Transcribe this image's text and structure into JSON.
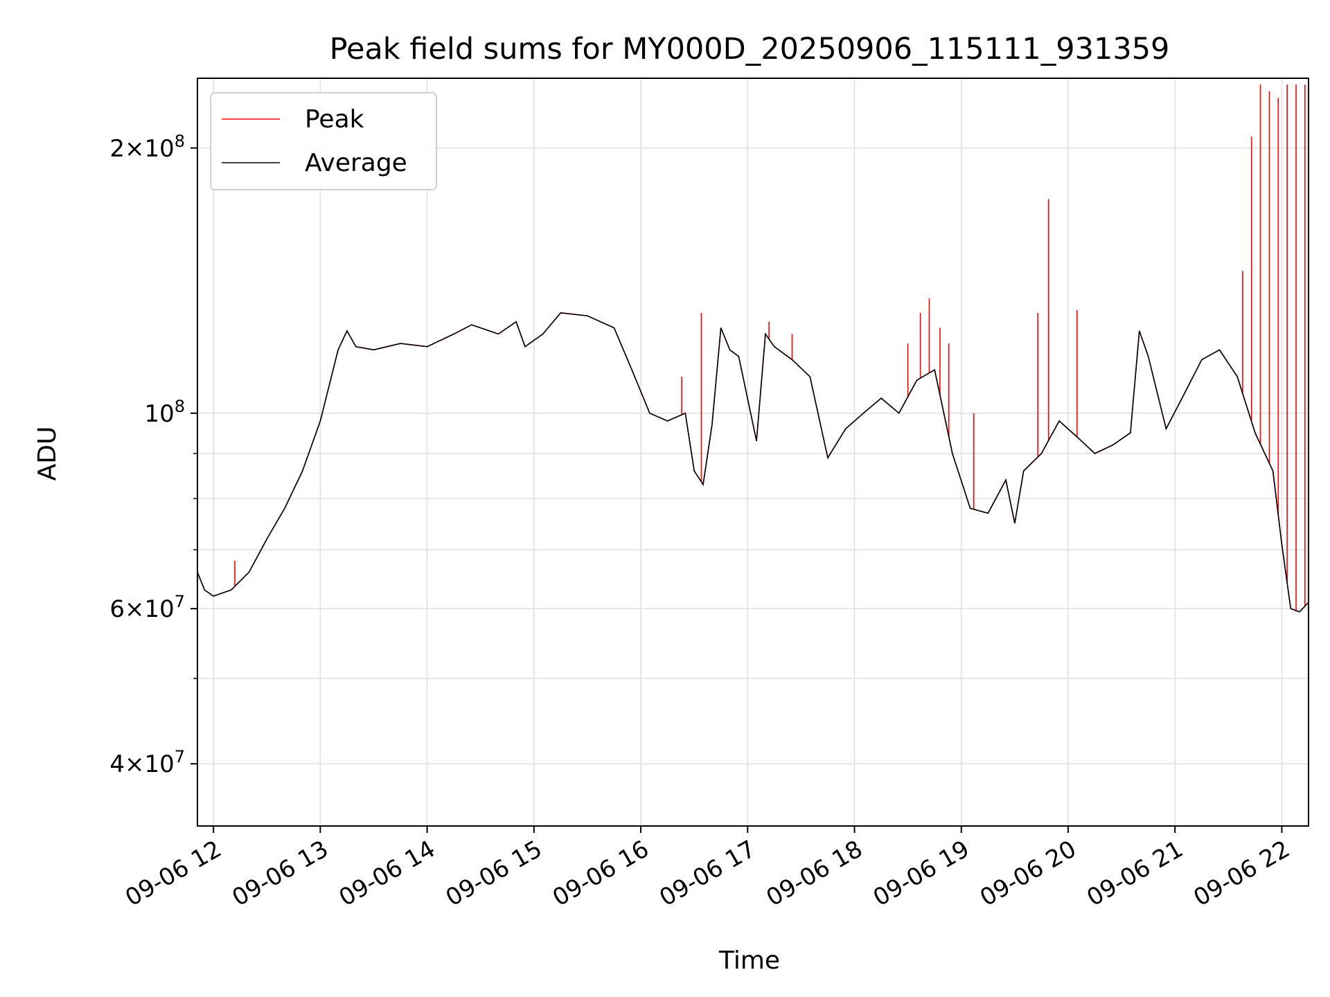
{
  "chart_data": {
    "type": "line",
    "title": "Peak field sums for MY000D_20250906_115111_931359",
    "xlabel": "Time",
    "ylabel": "ADU",
    "yscale": "log",
    "ylim": [
      34000000,
      240000000
    ],
    "xlim": [
      "2025-09-06 11:51",
      "2025-09-06 22:15"
    ],
    "grid": true,
    "legend_position": "top-left",
    "x_ticks": [
      "09-06 12",
      "09-06 13",
      "09-06 14",
      "09-06 15",
      "09-06 16",
      "09-06 17",
      "09-06 18",
      "09-06 19",
      "09-06 20",
      "09-06 21",
      "09-06 22"
    ],
    "y_ticks": [
      {
        "value": 40000000,
        "mantissa": "4",
        "base": "10",
        "exp": "7"
      },
      {
        "value": 60000000,
        "mantissa": "6",
        "base": "10",
        "exp": "7"
      },
      {
        "value": 100000000,
        "mantissa": "",
        "base": "10",
        "exp": "8"
      },
      {
        "value": 200000000,
        "mantissa": "2",
        "base": "10",
        "exp": "8"
      }
    ],
    "y_minor_ticks": [
      50000000,
      70000000,
      80000000,
      90000000
    ],
    "series": [
      {
        "name": "Average",
        "color": "#000000",
        "x": [
          "2025-09-06 11:51",
          "2025-09-06 11:55",
          "2025-09-06 12:00",
          "2025-09-06 12:10",
          "2025-09-06 12:20",
          "2025-09-06 12:30",
          "2025-09-06 12:40",
          "2025-09-06 12:50",
          "2025-09-06 13:00",
          "2025-09-06 13:10",
          "2025-09-06 13:15",
          "2025-09-06 13:20",
          "2025-09-06 13:30",
          "2025-09-06 13:45",
          "2025-09-06 14:00",
          "2025-09-06 14:15",
          "2025-09-06 14:25",
          "2025-09-06 14:40",
          "2025-09-06 14:50",
          "2025-09-06 14:55",
          "2025-09-06 15:05",
          "2025-09-06 15:15",
          "2025-09-06 15:30",
          "2025-09-06 15:45",
          "2025-09-06 15:55",
          "2025-09-06 16:05",
          "2025-09-06 16:15",
          "2025-09-06 16:25",
          "2025-09-06 16:30",
          "2025-09-06 16:35",
          "2025-09-06 16:40",
          "2025-09-06 16:45",
          "2025-09-06 16:50",
          "2025-09-06 16:55",
          "2025-09-06 17:05",
          "2025-09-06 17:10",
          "2025-09-06 17:15",
          "2025-09-06 17:25",
          "2025-09-06 17:35",
          "2025-09-06 17:45",
          "2025-09-06 17:55",
          "2025-09-06 18:05",
          "2025-09-06 18:15",
          "2025-09-06 18:25",
          "2025-09-06 18:35",
          "2025-09-06 18:45",
          "2025-09-06 18:55",
          "2025-09-06 19:05",
          "2025-09-06 19:15",
          "2025-09-06 19:25",
          "2025-09-06 19:30",
          "2025-09-06 19:35",
          "2025-09-06 19:45",
          "2025-09-06 19:55",
          "2025-09-06 20:05",
          "2025-09-06 20:15",
          "2025-09-06 20:25",
          "2025-09-06 20:35",
          "2025-09-06 20:40",
          "2025-09-06 20:45",
          "2025-09-06 20:55",
          "2025-09-06 21:05",
          "2025-09-06 21:15",
          "2025-09-06 21:25",
          "2025-09-06 21:35",
          "2025-09-06 21:45",
          "2025-09-06 21:55",
          "2025-09-06 22:00",
          "2025-09-06 22:05",
          "2025-09-06 22:10",
          "2025-09-06 22:15"
        ],
        "values": [
          66000000,
          63000000,
          62000000,
          63000000,
          66000000,
          72000000,
          78000000,
          86000000,
          98000000,
          118000000,
          124000000,
          119000000,
          118000000,
          120000000,
          119000000,
          123000000,
          126000000,
          123000000,
          127000000,
          119000000,
          123000000,
          130000000,
          129000000,
          125000000,
          112000000,
          100000000,
          98000000,
          100000000,
          86000000,
          83000000,
          97000000,
          125000000,
          118000000,
          116000000,
          93000000,
          123000000,
          119000000,
          115000000,
          110000000,
          89000000,
          96000000,
          100000000,
          104000000,
          100000000,
          109000000,
          112000000,
          90000000,
          78000000,
          77000000,
          84000000,
          75000000,
          86000000,
          90000000,
          98000000,
          94000000,
          90000000,
          92000000,
          95000000,
          124000000,
          116000000,
          96000000,
          105000000,
          115000000,
          118000000,
          110000000,
          95000000,
          86000000,
          71000000,
          60000000,
          59500000,
          61000000
        ]
      },
      {
        "name": "Peak",
        "color": "#ff0000",
        "x": [
          "2025-09-06 11:51",
          "2025-09-06 12:12",
          "2025-09-06 16:23",
          "2025-09-06 16:34",
          "2025-09-06 17:12",
          "2025-09-06 17:25",
          "2025-09-06 18:30",
          "2025-09-06 18:37",
          "2025-09-06 18:42",
          "2025-09-06 18:48",
          "2025-09-06 18:53",
          "2025-09-06 19:07",
          "2025-09-06 19:43",
          "2025-09-06 19:49",
          "2025-09-06 20:05",
          "2025-09-06 21:38",
          "2025-09-06 21:43",
          "2025-09-06 21:48",
          "2025-09-06 21:53",
          "2025-09-06 21:58",
          "2025-09-06 22:03",
          "2025-09-06 22:08",
          "2025-09-06 22:13"
        ],
        "values": [
          100000000,
          68000000,
          110000000,
          130000000,
          127000000,
          123000000,
          120000000,
          130000000,
          135000000,
          125000000,
          120000000,
          100000000,
          130000000,
          175000000,
          131000000,
          145000000,
          206000000,
          236000000,
          232000000,
          228000000,
          236000000,
          236000000,
          236000000
        ]
      }
    ]
  }
}
